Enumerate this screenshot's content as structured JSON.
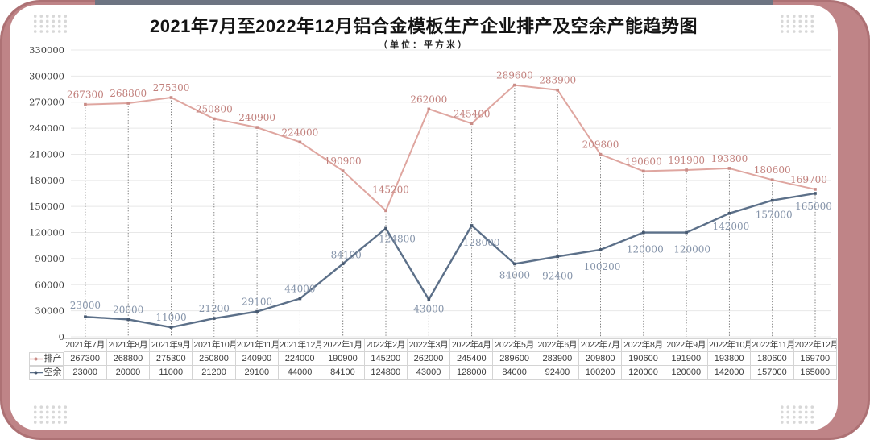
{
  "title": "2021年7月至2022年12月铝合金模板生产企业排产及空余产能趋势图",
  "subtitle": "（单位：平方米）",
  "colors": {
    "frame": "#bf8487",
    "top_strip": "#6d7482",
    "dots": "#d8d8d8",
    "title_text": "#141414",
    "axis_text": "#3d3d3d",
    "grid": "#e8e8e8",
    "dropline": "#4d4d4d",
    "table_border": "#d4d4d4",
    "table_text": "#3c3c3c",
    "paichan_line": "#dfa6a0",
    "paichan_marker": "#c98c87",
    "paichan_label": "#c2817d",
    "kongyu_line": "#5c7089",
    "kongyu_marker": "#475970",
    "kongyu_label": "#8493a9"
  },
  "chart_data": {
    "type": "line",
    "categories": [
      "2021年7月",
      "2021年8月",
      "2021年9月",
      "2021年10月",
      "2021年11月",
      "2021年12月",
      "2022年1月",
      "2022年2月",
      "2022年3月",
      "2022年4月",
      "2022年5月",
      "2022年6月",
      "2022年7月",
      "2022年8月",
      "2022年9月",
      "2022年10月",
      "2022年11月",
      "2022年12月"
    ],
    "series": [
      {
        "name": "排产",
        "color_key": "paichan",
        "line_width": 2,
        "values": [
          267300,
          268800,
          275300,
          250800,
          240900,
          224000,
          190900,
          145200,
          262000,
          245400,
          289600,
          283900,
          209800,
          190600,
          191900,
          193800,
          180600,
          169700
        ],
        "label_offsets": [
          [
            0,
            -8
          ],
          [
            0,
            -8
          ],
          [
            0,
            -8
          ],
          [
            0,
            -8
          ],
          [
            0,
            -8
          ],
          [
            0,
            -8
          ],
          [
            0,
            -8
          ],
          [
            6,
            -22
          ],
          [
            0,
            -8
          ],
          [
            0,
            -8
          ],
          [
            0,
            -8
          ],
          [
            0,
            -8
          ],
          [
            0,
            -8
          ],
          [
            0,
            -8
          ],
          [
            0,
            -8
          ],
          [
            0,
            -8
          ],
          [
            0,
            -8
          ],
          [
            -8,
            -8
          ]
        ]
      },
      {
        "name": "空余",
        "color_key": "kongyu",
        "line_width": 2.4,
        "values": [
          23000,
          20000,
          11000,
          21200,
          29100,
          44000,
          84100,
          124800,
          43000,
          128000,
          84000,
          92400,
          100200,
          120000,
          120000,
          142000,
          157000,
          165000
        ],
        "label_offsets": [
          [
            0,
            -10
          ],
          [
            0,
            -8
          ],
          [
            0,
            -8
          ],
          [
            0,
            -8
          ],
          [
            0,
            -8
          ],
          [
            0,
            -8
          ],
          [
            4,
            -7
          ],
          [
            14,
            17
          ],
          [
            0,
            16
          ],
          [
            12,
            25
          ],
          [
            0,
            18
          ],
          [
            0,
            28
          ],
          [
            2,
            25
          ],
          [
            2,
            25
          ],
          [
            7,
            25
          ],
          [
            2,
            20
          ],
          [
            2,
            22
          ],
          [
            -2,
            20
          ]
        ]
      }
    ],
    "ylim": [
      0,
      330000
    ],
    "ytick_step": 30000,
    "xlabel": "",
    "ylabel": "",
    "grid": true,
    "droplines": true,
    "legend_position": "table-left"
  }
}
